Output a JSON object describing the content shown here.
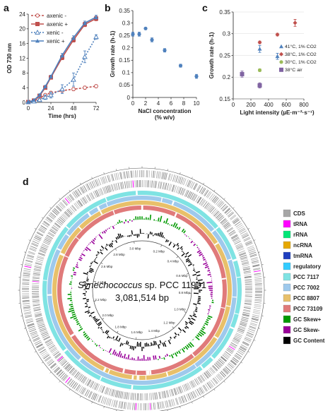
{
  "panels": {
    "a": {
      "letter": "a"
    },
    "b": {
      "letter": "b"
    },
    "c": {
      "letter": "c"
    },
    "d": {
      "letter": "d"
    }
  },
  "chart_data": [
    {
      "id": "a",
      "type": "line",
      "xlabel": "Time (hrs)",
      "ylabel": "OD 730 nm",
      "xlim": [
        0,
        72
      ],
      "ylim": [
        0,
        24
      ],
      "xticks": [
        0,
        24,
        48,
        72
      ],
      "yticks": [
        0,
        4,
        8,
        12,
        16,
        20,
        24
      ],
      "series": [
        {
          "name": "axenic -",
          "color": "#c0504d",
          "marker": "open-circle",
          "dash": "3,2",
          "x": [
            0,
            6,
            12,
            18,
            24,
            36,
            48,
            60,
            72
          ],
          "y": [
            0.1,
            0.4,
            1.2,
            2.0,
            2.6,
            3.2,
            3.6,
            4.0,
            4.4
          ],
          "err": [
            0.05,
            0.2,
            0.4,
            0.4,
            0.4,
            0.4,
            0.4,
            0.4,
            0.4
          ]
        },
        {
          "name": "axenic +",
          "color": "#c0504d",
          "marker": "filled-square",
          "dash": "",
          "x": [
            0,
            6,
            12,
            18,
            24,
            36,
            48,
            60,
            72
          ],
          "y": [
            0.1,
            0.5,
            1.8,
            4.0,
            6.8,
            12.2,
            17.0,
            21.2,
            22.8
          ],
          "err": [
            0.05,
            0.2,
            0.3,
            0.4,
            0.5,
            0.6,
            0.6,
            0.6,
            0.6
          ]
        },
        {
          "name": "xenic -",
          "color": "#4f81bd",
          "marker": "open-triangle",
          "dash": "2,2",
          "x": [
            0,
            6,
            12,
            18,
            24,
            36,
            48,
            60,
            72
          ],
          "y": [
            0.1,
            0.3,
            0.7,
            1.4,
            2.0,
            3.6,
            6.2,
            12.4,
            17.8
          ],
          "err": [
            0.05,
            0.2,
            0.3,
            0.6,
            0.8,
            1.2,
            1.8,
            1.6,
            0.6
          ]
        },
        {
          "name": "xenic +",
          "color": "#4f81bd",
          "marker": "filled-triangle",
          "dash": "",
          "x": [
            0,
            6,
            12,
            18,
            24,
            36,
            48,
            60,
            72
          ],
          "y": [
            0.1,
            0.6,
            2.0,
            4.3,
            7.0,
            12.8,
            17.6,
            21.6,
            23.2
          ],
          "err": [
            0.05,
            0.2,
            0.3,
            0.3,
            0.4,
            0.5,
            0.5,
            0.5,
            0.5
          ]
        }
      ]
    },
    {
      "id": "b",
      "type": "scatter",
      "xlabel": "NaCl concentration",
      "xlabel2": "(% w/v)",
      "ylabel": "Growth rate (h-1)",
      "xlim": [
        0,
        10
      ],
      "ylim": [
        0,
        0.35
      ],
      "xticks": [
        0,
        2,
        4,
        6,
        8,
        10
      ],
      "yticks": [
        0,
        0.05,
        0.1,
        0.15,
        0.2,
        0.25,
        0.3,
        0.35
      ],
      "series": [
        {
          "name": "",
          "color": "#4f81bd",
          "x": [
            0,
            1,
            2,
            3,
            5,
            7.5,
            10
          ],
          "y": [
            0.255,
            0.255,
            0.278,
            0.232,
            0.19,
            0.128,
            0.085
          ],
          "err": [
            0.008,
            0.008,
            0.004,
            0.008,
            0.007,
            0.006,
            0.008
          ]
        }
      ]
    },
    {
      "id": "c",
      "type": "scatter",
      "xlabel": "Light intensity (µE·m⁻²·s⁻¹)",
      "ylabel": "Growth rate (h-1)",
      "xlim": [
        0,
        800
      ],
      "ylim": [
        0.15,
        0.35
      ],
      "xticks": [
        0,
        200,
        400,
        600,
        800
      ],
      "yticks": [
        0.15,
        0.2,
        0.25,
        0.3,
        0.35
      ],
      "series": [
        {
          "name": "41°C, 1% CO2",
          "color": "#4f81bd",
          "marker": "triangle",
          "x": [
            300,
            500
          ],
          "y": [
            0.265,
            0.248
          ],
          "err": [
            0.008,
            0.007
          ]
        },
        {
          "name": "38°C, 1% CO2",
          "color": "#c0504d",
          "marker": "diamond",
          "x": [
            300,
            500,
            700
          ],
          "y": [
            0.28,
            0.298,
            0.325
          ],
          "err": [
            0.003,
            0.003,
            0.008
          ]
        },
        {
          "name": "30°C, 1% CO2",
          "color": "#9bbb59",
          "marker": "circle",
          "x": [
            300
          ],
          "y": [
            0.216
          ],
          "err": [
            0.003
          ]
        },
        {
          "name": "38°C air",
          "color": "#8064a2",
          "marker": "square",
          "x": [
            100,
            300
          ],
          "y": [
            0.207,
            0.181
          ],
          "err": [
            0.007,
            0.006
          ]
        }
      ]
    }
  ],
  "genome": {
    "title_species": "Synechococcus",
    "title_strain": " sp. PCC 11901",
    "length_label": "3,081,514 bp",
    "ticks": [
      "0.2 Mbp",
      "0.4 Mbp",
      "0.6 Mbp",
      "0.8 Mbp",
      "1.0 Mbp",
      "1.2 Mbp",
      "1.4 Mbp",
      "1.6 Mbp",
      "1.8 Mbp",
      "2.0 Mbp",
      "2.2 Mbp",
      "2.4 Mbp",
      "2.6 Mbp",
      "2.8 Mbp",
      "3.0 Mbp"
    ],
    "legend": [
      {
        "label": "CDS",
        "color": "#a6a6a6"
      },
      {
        "label": "tRNA",
        "color": "#ff00ff"
      },
      {
        "label": "rRNA",
        "color": "#00e676"
      },
      {
        "label": "ncRNA",
        "color": "#e6a800"
      },
      {
        "label": "tmRNA",
        "color": "#1f3fbf"
      },
      {
        "label": "regulatory",
        "color": "#33ccff"
      },
      {
        "label": "PCC 7117",
        "color": "#7fe3e3"
      },
      {
        "label": "PCC 7002",
        "color": "#9ec9ec"
      },
      {
        "label": "PCC 8807",
        "color": "#e8c06a"
      },
      {
        "label": "PCC 73109",
        "color": "#e07a7a"
      },
      {
        "label": "GC Skew+",
        "color": "#009900"
      },
      {
        "label": "GC Skew-",
        "color": "#990099"
      },
      {
        "label": "GC Content",
        "color": "#000000"
      }
    ]
  }
}
